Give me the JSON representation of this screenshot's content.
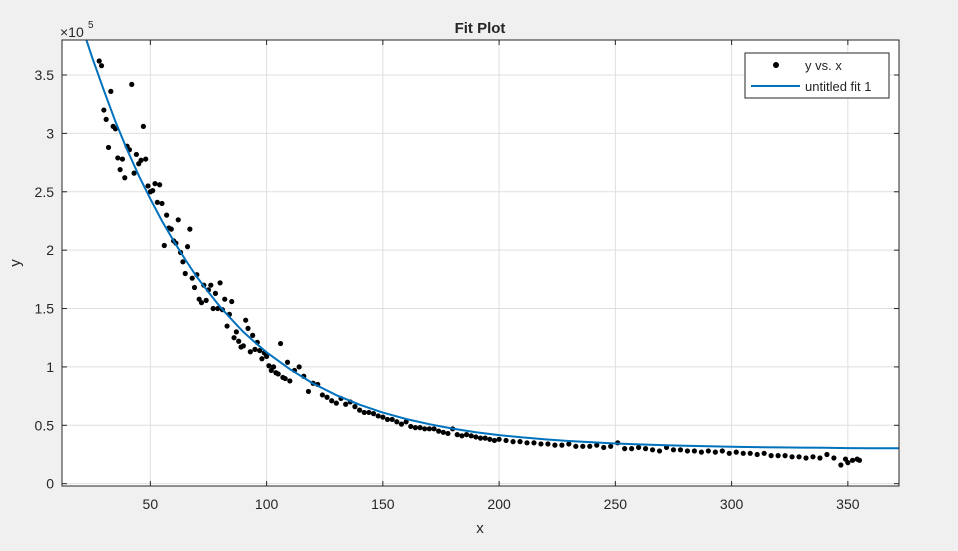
{
  "chart_data": {
    "type": "scatter",
    "title": "Fit Plot",
    "xlabel": "x",
    "ylabel": "y",
    "exponent_label": {
      "base": "×10",
      "power": "5"
    },
    "xlim": [
      12,
      372
    ],
    "ylim": [
      -2000,
      380000
    ],
    "x_ticks": [
      50,
      100,
      150,
      200,
      250,
      300,
      350
    ],
    "x_tick_labels": [
      "50",
      "100",
      "150",
      "200",
      "250",
      "300",
      "350"
    ],
    "y_ticks": [
      0,
      50000,
      100000,
      150000,
      200000,
      250000,
      300000,
      350000
    ],
    "y_tick_labels": [
      "0",
      "0.5",
      "1",
      "1.5",
      "2",
      "2.5",
      "3",
      "3.5"
    ],
    "grid": true,
    "legend_placement": "top-right",
    "series": [
      {
        "name": "y vs. x",
        "kind": "points",
        "color": "#000000",
        "x": [
          28,
          29,
          30,
          31,
          32,
          33,
          34,
          35,
          36,
          37,
          38,
          39,
          40,
          41,
          42,
          43,
          44,
          45,
          46,
          47,
          48,
          49,
          50,
          51,
          52,
          53,
          54,
          55,
          56,
          57,
          58,
          59,
          60,
          61,
          62,
          63,
          64,
          65,
          66,
          67,
          68,
          69,
          70,
          71,
          72,
          73,
          74,
          75,
          76,
          77,
          78,
          79,
          80,
          81,
          82,
          83,
          84,
          85,
          86,
          87,
          88,
          89,
          90,
          91,
          92,
          93,
          94,
          95,
          96,
          97,
          98,
          99,
          100,
          101,
          102,
          103,
          104,
          105,
          106,
          107,
          108,
          109,
          110,
          112,
          114,
          116,
          118,
          120,
          122,
          124,
          126,
          128,
          130,
          132,
          134,
          136,
          138,
          140,
          142,
          144,
          146,
          148,
          150,
          152,
          154,
          156,
          158,
          160,
          162,
          164,
          166,
          168,
          170,
          172,
          174,
          176,
          178,
          180,
          182,
          184,
          186,
          188,
          190,
          192,
          194,
          196,
          198,
          200,
          203,
          206,
          209,
          212,
          215,
          218,
          221,
          224,
          227,
          230,
          233,
          236,
          239,
          242,
          245,
          248,
          251,
          254,
          257,
          260,
          263,
          266,
          269,
          272,
          275,
          278,
          281,
          284,
          287,
          290,
          293,
          296,
          299,
          302,
          305,
          308,
          311,
          314,
          317,
          320,
          323,
          326,
          329,
          332,
          335,
          338,
          341,
          344,
          347,
          349,
          350,
          352,
          354,
          355
        ],
        "y": [
          362000,
          358000,
          320000,
          312000,
          288000,
          336000,
          306000,
          304000,
          279000,
          269000,
          278000,
          262000,
          289000,
          286000,
          342000,
          266000,
          282000,
          274000,
          277000,
          306000,
          278000,
          255000,
          250000,
          251000,
          257000,
          241000,
          256000,
          240000,
          204000,
          230000,
          219000,
          218000,
          208000,
          206000,
          226000,
          198000,
          190000,
          180000,
          203000,
          218000,
          176000,
          168000,
          179000,
          158000,
          155000,
          170000,
          157000,
          166000,
          170000,
          150000,
          163000,
          150000,
          172000,
          149000,
          158000,
          135000,
          145000,
          156000,
          125000,
          130000,
          122000,
          117000,
          118000,
          140000,
          133000,
          113000,
          127000,
          115000,
          121000,
          114000,
          107000,
          112000,
          109000,
          101000,
          97000,
          100000,
          95000,
          94000,
          120000,
          91000,
          90000,
          104000,
          88000,
          97000,
          100000,
          92000,
          79000,
          86000,
          85000,
          76000,
          74000,
          71000,
          69000,
          73000,
          68000,
          70000,
          66000,
          63000,
          61000,
          61000,
          60000,
          58000,
          57000,
          55000,
          55000,
          53000,
          51000,
          53000,
          49000,
          48000,
          48000,
          47000,
          47000,
          47000,
          45000,
          44000,
          43000,
          47000,
          42000,
          41000,
          42000,
          41000,
          40000,
          39000,
          39000,
          38000,
          37000,
          38000,
          37000,
          36000,
          36000,
          35000,
          35000,
          34000,
          34000,
          33000,
          33000,
          34000,
          32000,
          32000,
          32000,
          33000,
          31000,
          32000,
          35000,
          30000,
          30000,
          31000,
          30000,
          29000,
          28000,
          31000,
          29000,
          29000,
          28000,
          28000,
          27000,
          28000,
          27000,
          28000,
          26000,
          27000,
          26000,
          26000,
          25000,
          26000,
          24000,
          24000,
          24000,
          23000,
          23000,
          22000,
          23000,
          22000,
          25000,
          22000,
          16000,
          21000,
          18000,
          20000,
          21000,
          20000
        ]
      },
      {
        "name": "untitled fit 1",
        "kind": "line",
        "color": "#0072bd",
        "x": [
          12,
          20,
          25,
          30,
          35,
          40,
          45,
          50,
          55,
          60,
          65,
          70,
          75,
          80,
          85,
          90,
          95,
          100,
          110,
          120,
          130,
          140,
          150,
          160,
          170,
          180,
          190,
          200,
          210,
          220,
          230,
          240,
          250,
          260,
          270,
          280,
          290,
          300,
          310,
          320,
          330,
          340,
          350,
          360,
          372
        ],
        "y": [
          450000,
          395000,
          365000,
          337000,
          310000,
          286000,
          264000,
          244000,
          225000,
          208000,
          192000,
          177000,
          164000,
          151500,
          140500,
          130000,
          121000,
          112500,
          98000,
          85800,
          75800,
          67600,
          60900,
          55400,
          50900,
          47200,
          44100,
          41600,
          39600,
          37900,
          36500,
          35400,
          34400,
          33600,
          33000,
          32500,
          32000,
          31600,
          31300,
          31100,
          30900,
          30700,
          30500,
          30400,
          30300
        ]
      }
    ]
  }
}
